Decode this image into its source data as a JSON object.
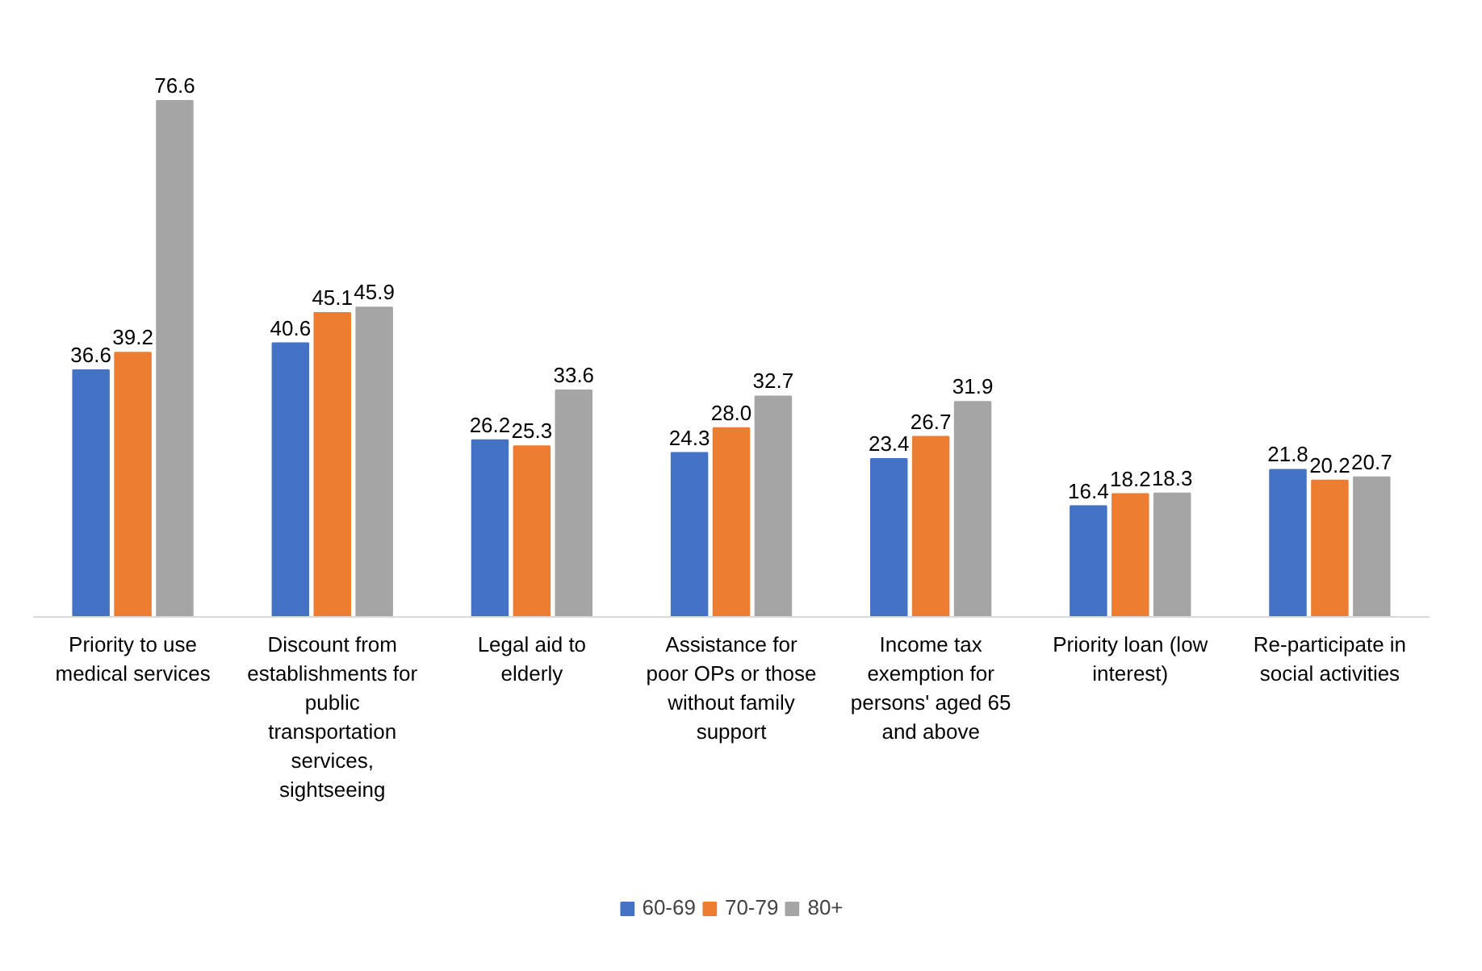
{
  "chart_data": {
    "type": "bar",
    "categories": [
      "Priority to use medical services",
      "Discount from establishments for public transportation services, sightseeing",
      "Legal aid to elderly",
      "Assistance for poor OPs or those without family support",
      "Income tax exemption for persons' aged 65 and above",
      "Priority loan (low interest)",
      "Re-participate in social activities"
    ],
    "series": [
      {
        "name": "60-69",
        "color": "#4472c4",
        "values": [
          36.6,
          40.6,
          26.2,
          24.3,
          23.4,
          16.4,
          21.8
        ],
        "value_labels": [
          "36.6",
          "40.6",
          "26.2",
          "24.3",
          "23.4",
          "16.4",
          "21.8"
        ]
      },
      {
        "name": "70-79",
        "color": "#ed7d31",
        "values": [
          39.2,
          45.1,
          25.3,
          28.0,
          26.7,
          18.2,
          20.2
        ],
        "value_labels": [
          "39.2",
          "45.1",
          "25.3",
          "28.0",
          "26.7",
          "18.2",
          "20.2"
        ]
      },
      {
        "name": "80+",
        "color": "#a5a5a5",
        "values": [
          76.6,
          45.9,
          33.6,
          32.7,
          31.9,
          18.3,
          20.7
        ],
        "value_labels": [
          "76.6",
          "45.9",
          "33.6",
          "32.7",
          "31.9",
          "18.3",
          "20.7"
        ]
      }
    ],
    "legend": "bottom"
  }
}
